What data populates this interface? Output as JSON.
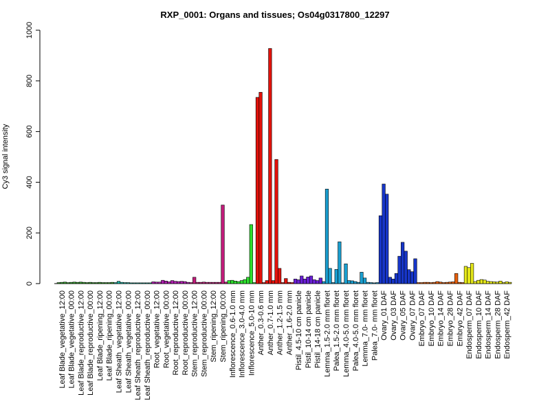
{
  "chart_data": {
    "type": "bar",
    "title": "RXP_0001: Organs and tissues; Os04g0317800_12297",
    "xlabel": "",
    "ylabel": "Cy3 signal intensity",
    "ylim": [
      0,
      1000
    ],
    "yticks": [
      0,
      200,
      400,
      600,
      800,
      1000
    ],
    "grid": false,
    "legend": "none",
    "groups": [
      {
        "label": "Leaf Blade_vegetative_12:00",
        "color": "#33a02c",
        "values": [
          4,
          5,
          6
        ]
      },
      {
        "label": "Leaf Blade_vegetative_00:00",
        "color": "#33a02c",
        "values": [
          4,
          5,
          6
        ]
      },
      {
        "label": "Leaf Blade_reproductive_12:00",
        "color": "#33a02c",
        "values": [
          5,
          6,
          5
        ]
      },
      {
        "label": "Leaf Blade_reproductive_00:00",
        "color": "#33a02c",
        "values": [
          4,
          5,
          4
        ]
      },
      {
        "label": "Leaf Blade_ripening_12:00",
        "color": "#33a02c",
        "values": [
          4,
          5,
          4
        ]
      },
      {
        "label": "Leaf Blade_ripening_00:00",
        "color": "#33a02c",
        "values": [
          4,
          4,
          5
        ]
      },
      {
        "label": "Leaf Sheath_vegetative_12:00",
        "color": "#1ab0a0",
        "values": [
          4,
          9,
          5
        ]
      },
      {
        "label": "Leaf Sheath_vegetative_00:00",
        "color": "#1ab0a0",
        "values": [
          4,
          4,
          3
        ]
      },
      {
        "label": "Leaf Sheath_reproductive_12:00",
        "color": "#1ab0a0",
        "values": [
          3,
          3,
          3
        ]
      },
      {
        "label": "Leaf Sheath_reproductive_00:00",
        "color": "#1ab0a0",
        "values": [
          3,
          3,
          3
        ]
      },
      {
        "label": "Root_vegetative_12:00",
        "color": "#b01fb0",
        "values": [
          7,
          6,
          6
        ]
      },
      {
        "label": "Root_vegetative_00:00",
        "color": "#b01fb0",
        "values": [
          13,
          10,
          7
        ]
      },
      {
        "label": "Root_reproductive_12:00",
        "color": "#b01fb0",
        "values": [
          12,
          9,
          8
        ]
      },
      {
        "label": "Root_reproductive_00:00",
        "color": "#b01fb0",
        "values": [
          9,
          8,
          5
        ]
      },
      {
        "label": "Stem_reproductive_12:00",
        "color": "#c01c7a",
        "values": [
          4,
          25,
          5
        ]
      },
      {
        "label": "Stem_reproductive_00:00",
        "color": "#c01c7a",
        "values": [
          5,
          6,
          5
        ]
      },
      {
        "label": "Stem_ripening_12:00",
        "color": "#c01c7a",
        "values": [
          5,
          5,
          5
        ]
      },
      {
        "label": "Stem_ripening_00:00",
        "color": "#c01c7a",
        "values": [
          5,
          310,
          6
        ]
      },
      {
        "label": "Inflorescence_0.6-1.0 mm",
        "color": "#2ee02e",
        "values": [
          12,
          13,
          10
        ]
      },
      {
        "label": "Inflorescence_3.0-4.0 mm",
        "color": "#2ee02e",
        "values": [
          8,
          12,
          16
        ]
      },
      {
        "label": "Inflorescence_5.0-10 mm",
        "color": "#2ee02e",
        "values": [
          25,
          233,
          4
        ]
      },
      {
        "label": "Anther_0.3-0.6 mm",
        "color": "#e3120b",
        "values": [
          735,
          755,
          4
        ]
      },
      {
        "label": "Anther_0.7-1.0 mm",
        "color": "#e3120b",
        "values": [
          12,
          928,
          12
        ]
      },
      {
        "label": "Anther_1.2-1.5 mm",
        "color": "#e3120b",
        "values": [
          490,
          60,
          4
        ]
      },
      {
        "label": "Anther_1.6-2.0 mm",
        "color": "#e3120b",
        "values": [
          20,
          5,
          4
        ]
      },
      {
        "label": "Pistil_4.5-10 cm panicle",
        "color": "#6a1fd6",
        "values": [
          18,
          15,
          30
        ]
      },
      {
        "label": "Pistil_10-14 cm panicle",
        "color": "#6a1fd6",
        "values": [
          18,
          26,
          30
        ]
      },
      {
        "label": "Pistil_14-18 cm panicle",
        "color": "#6a1fd6",
        "values": [
          15,
          12,
          22
        ]
      },
      {
        "label": "Lemma_1.5-2.0 mm floret",
        "color": "#1a9ecf",
        "values": [
          8,
          373,
          60
        ]
      },
      {
        "label": "Palea_1.5-2.0 mm floret",
        "color": "#1a9ecf",
        "values": [
          4,
          56,
          165
        ]
      },
      {
        "label": "Lemma_4.0-5.0 mm floret",
        "color": "#1a9ecf",
        "values": [
          3,
          78,
          12
        ]
      },
      {
        "label": "Palea_4.0-5.0 mm floret",
        "color": "#1a9ecf",
        "values": [
          11,
          8,
          5
        ]
      },
      {
        "label": "Lemma_7.0- mm floret",
        "color": "#1a9ecf",
        "values": [
          45,
          22,
          5
        ]
      },
      {
        "label": "Palea_7.0- mm floret",
        "color": "#1a9ecf",
        "values": [
          4,
          3,
          4
        ]
      },
      {
        "label": "Ovary_01 DAF",
        "color": "#1736c9",
        "values": [
          268,
          393,
          353
        ]
      },
      {
        "label": "Ovary_03 DAF",
        "color": "#1736c9",
        "values": [
          25,
          18,
          40
        ]
      },
      {
        "label": "Ovary_05 DAF",
        "color": "#1736c9",
        "values": [
          108,
          163,
          128
        ]
      },
      {
        "label": "Ovary_07 DAF",
        "color": "#1736c9",
        "values": [
          55,
          47,
          98
        ]
      },
      {
        "label": "Embryo_07 DAF",
        "color": "#e8600b",
        "values": [
          4,
          4,
          5
        ]
      },
      {
        "label": "Embryo_10 DAF",
        "color": "#e8600b",
        "values": [
          5,
          4,
          5
        ]
      },
      {
        "label": "Embryo_14 DAF",
        "color": "#e8600b",
        "values": [
          8,
          6,
          4
        ]
      },
      {
        "label": "Embryo_28 DAF",
        "color": "#e8600b",
        "values": [
          5,
          6,
          7
        ]
      },
      {
        "label": "Embryo_42 DAF",
        "color": "#e8600b",
        "values": [
          40,
          5,
          4
        ]
      },
      {
        "label": "Endosperm_07 DAF",
        "color": "#e5e81a",
        "values": [
          68,
          63,
          80
        ]
      },
      {
        "label": "Endosperm_10 DAF",
        "color": "#e5e81a",
        "values": [
          8,
          13,
          16
        ]
      },
      {
        "label": "Endosperm_14 DAF",
        "color": "#e5e81a",
        "values": [
          14,
          9,
          8
        ]
      },
      {
        "label": "Endosperm_28 DAF",
        "color": "#e5e81a",
        "values": [
          7,
          6,
          10
        ]
      },
      {
        "label": "Endosperm_42 DAF",
        "color": "#e5e81a",
        "values": [
          4,
          7,
          5
        ]
      }
    ]
  }
}
